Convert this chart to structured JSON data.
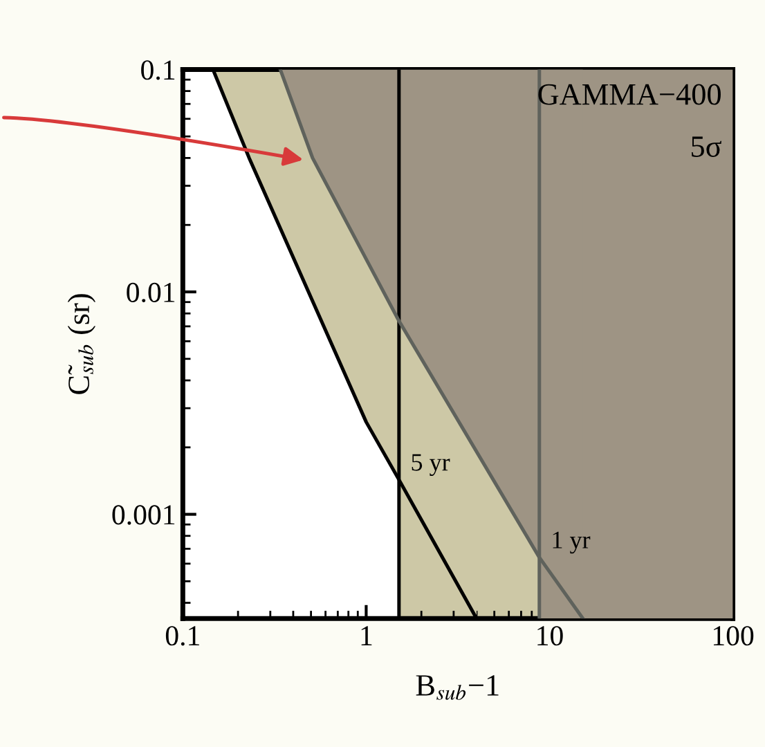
{
  "chart_data": {
    "type": "line",
    "xlabel": "B$_{sub}$−1",
    "ylabel": "C̃$_{sub}$ (sr)",
    "log": "xy",
    "xlim": [
      0.1,
      100
    ],
    "ylim": [
      0.00034,
      0.1
    ],
    "xticks": [
      0.1,
      1,
      10,
      100
    ],
    "yticks": [
      0.1,
      0.01,
      0.001
    ],
    "series": [
      {
        "color": "#000000",
        "x": [
          0.146,
          0.23,
          1.0,
          1.51,
          4.0
        ],
        "values": [
          0.1,
          0.04,
          0.0026,
          0.00143,
          0.00034
        ]
      },
      {
        "color": "#5f625c",
        "x": [
          0.34,
          0.51,
          1.51,
          8.8,
          15.2
        ],
        "values": [
          0.1,
          0.04,
          0.0074,
          0.00064,
          0.00034
        ]
      }
    ],
    "bands": [
      {
        "axis": "x",
        "from": 1.51,
        "to": 100,
        "color": "#cdc8a6"
      },
      {
        "axis": "x",
        "from": 8.8,
        "to": 100,
        "color": "#9e9484"
      }
    ],
    "ref_lines": [
      {
        "axis": "x",
        "value": 1.51,
        "color": "#000000"
      },
      {
        "axis": "x",
        "value": 8.8,
        "color": "#5f625c"
      }
    ],
    "annotations": [
      "GAMMA−400",
      "5σ",
      {
        "text": "5 yr",
        "x": 1.51,
        "y": 0.00143
      },
      {
        "text": "1 yr",
        "x": 8.8,
        "y": 0.00064
      }
    ]
  }
}
